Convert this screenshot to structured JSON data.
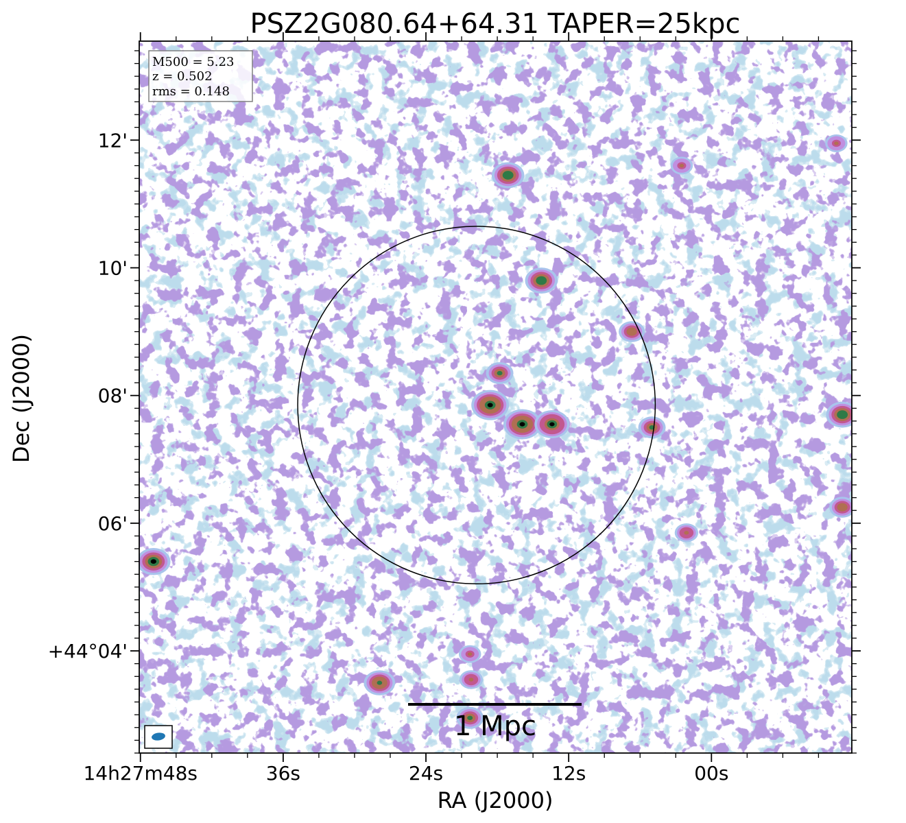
{
  "chart_data": {
    "type": "heatmap",
    "title": "PSZ2G080.64+64.31 TAPER=25kpc",
    "xlabel": "RA (J2000)",
    "ylabel": "Dec (J2000)",
    "x_ticks": [
      {
        "label": "14h27m48s",
        "ra_sec": 48
      },
      {
        "label": "36s",
        "ra_sec": 36
      },
      {
        "label": "24s",
        "ra_sec": 24
      },
      {
        "label": "12s",
        "ra_sec": 12
      },
      {
        "label": "00s",
        "ra_sec": 0
      }
    ],
    "y_ticks": [
      {
        "label": "12'",
        "dec_arcmin": 12
      },
      {
        "label": "10'",
        "dec_arcmin": 10
      },
      {
        "label": "08'",
        "dec_arcmin": 8
      },
      {
        "label": "06'",
        "dec_arcmin": 6
      },
      {
        "label": "+44°04'",
        "dec_arcmin": 4
      }
    ],
    "ra_range_sec": [
      48.1,
      -11.8
    ],
    "dec_range_arcmin": [
      2.4,
      13.55
    ],
    "info_box": [
      "M500 = 5.23",
      "z = 0.502",
      "rms = 0.148"
    ],
    "scale_bar_label": "1 Mpc",
    "circle": {
      "ra_sec": 19.75,
      "dec_arcmin": 7.85,
      "radius_arcmin": 2.8
    },
    "sources": [
      {
        "ra_sec": 18.6,
        "dec_arcmin": 7.85,
        "strength": 1.0
      },
      {
        "ra_sec": 15.9,
        "dec_arcmin": 7.55,
        "strength": 1.0
      },
      {
        "ra_sec": 13.4,
        "dec_arcmin": 7.55,
        "strength": 0.9
      },
      {
        "ra_sec": 17.8,
        "dec_arcmin": 8.35,
        "strength": 0.6
      },
      {
        "ra_sec": 17.1,
        "dec_arcmin": 11.45,
        "strength": 0.8
      },
      {
        "ra_sec": 14.3,
        "dec_arcmin": 9.8,
        "strength": 0.8
      },
      {
        "ra_sec": 6.7,
        "dec_arcmin": 9.0,
        "strength": 0.55
      },
      {
        "ra_sec": 5.0,
        "dec_arcmin": 7.5,
        "strength": 0.6
      },
      {
        "ra_sec": -11.0,
        "dec_arcmin": 7.7,
        "strength": 0.8
      },
      {
        "ra_sec": -11.0,
        "dec_arcmin": 6.25,
        "strength": 0.55
      },
      {
        "ra_sec": 46.9,
        "dec_arcmin": 5.4,
        "strength": 0.85
      },
      {
        "ra_sec": 27.9,
        "dec_arcmin": 3.5,
        "strength": 0.75
      },
      {
        "ra_sec": 20.3,
        "dec_arcmin": 2.95,
        "strength": 0.6
      },
      {
        "ra_sec": 20.2,
        "dec_arcmin": 3.55,
        "strength": 0.45
      },
      {
        "ra_sec": 20.3,
        "dec_arcmin": 3.95,
        "strength": 0.4
      },
      {
        "ra_sec": 2.1,
        "dec_arcmin": 5.85,
        "strength": 0.45
      },
      {
        "ra_sec": -10.5,
        "dec_arcmin": 11.95,
        "strength": 0.4
      },
      {
        "ra_sec": 2.5,
        "dec_arcmin": 11.6,
        "strength": 0.4
      }
    ],
    "colormap": [
      "#ffffff",
      "#c8e4ef",
      "#a9c4ec",
      "#c08fe0",
      "#c2588f",
      "#b06f52",
      "#2f7a46",
      "#000000"
    ],
    "beam_color": "#1f77b4",
    "grid": false
  }
}
